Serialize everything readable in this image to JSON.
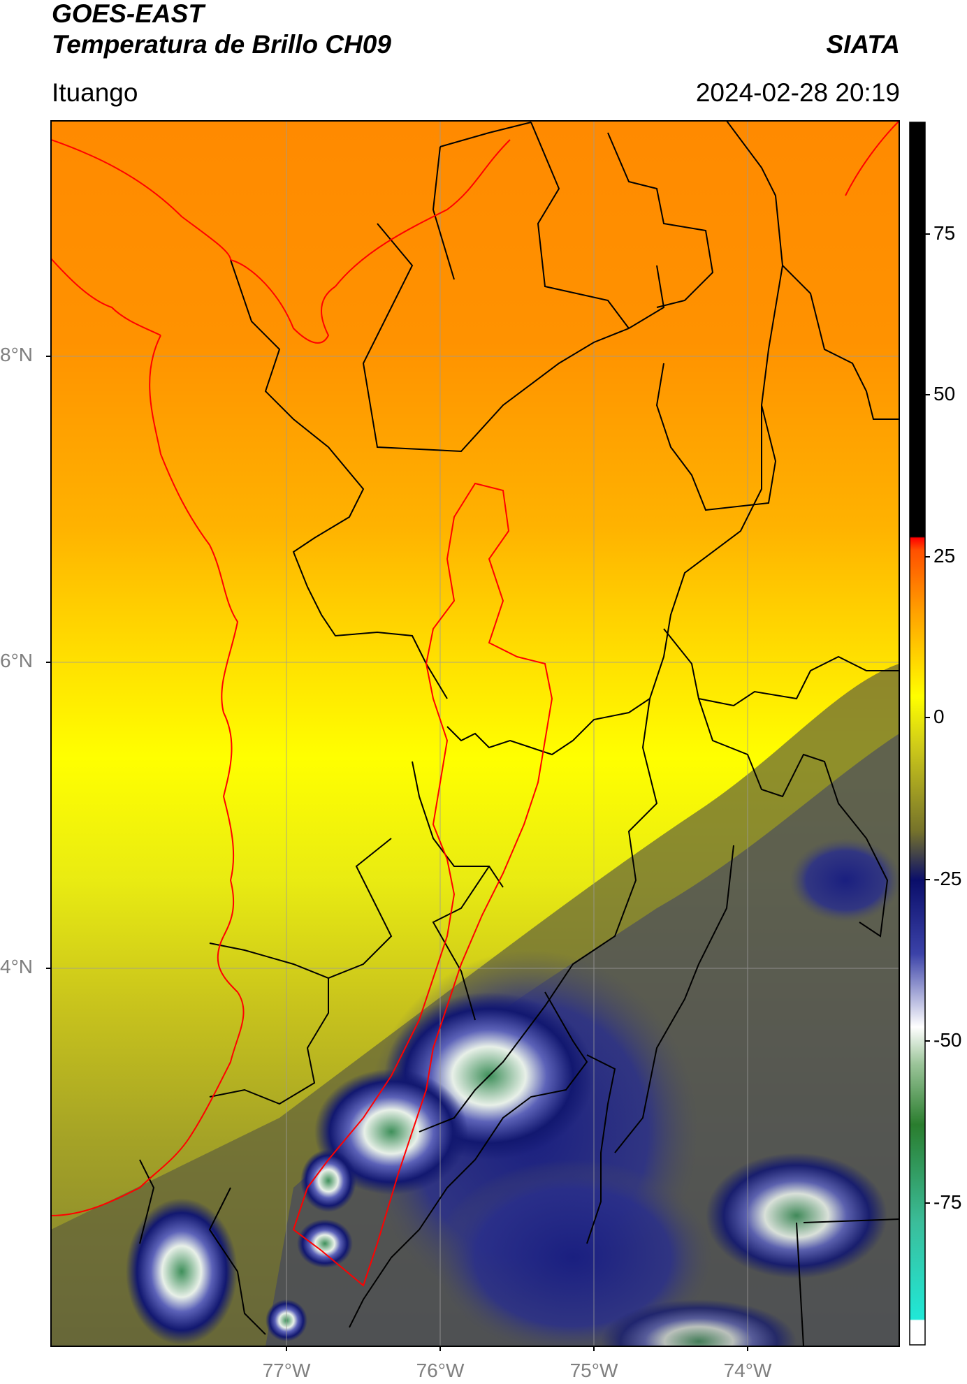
{
  "header": {
    "title_line1": "GOES-EAST",
    "title_line2": "Temperatura de Brillo CH09",
    "brand": "SIATA",
    "region": "Ituango",
    "timestamp": "2024-02-28 20:19"
  },
  "map": {
    "lat_labels": [
      "8°N",
      "6°N",
      "4°N"
    ],
    "lon_labels": [
      "77°W",
      "76°W",
      "75°W",
      "74°W"
    ],
    "colors": {
      "border_country": "#000000",
      "coast": "#ff0000",
      "basin": "#ff0000",
      "grid": "#9a9a9a"
    }
  },
  "colorbar": {
    "ticks": [
      "75",
      "50",
      "25",
      "0",
      "-25",
      "-50",
      "-75"
    ],
    "stops": [
      "#ffffff",
      "#22e5d5",
      "#3a9a5e",
      "#2d7f2f",
      "#ffffff",
      "#232a8e",
      "#0a0f6a",
      "#6c6f2a",
      "#c8c41a",
      "#ffff00",
      "#ffa200",
      "#ff6a00",
      "#ff0000",
      "#000000"
    ]
  }
}
